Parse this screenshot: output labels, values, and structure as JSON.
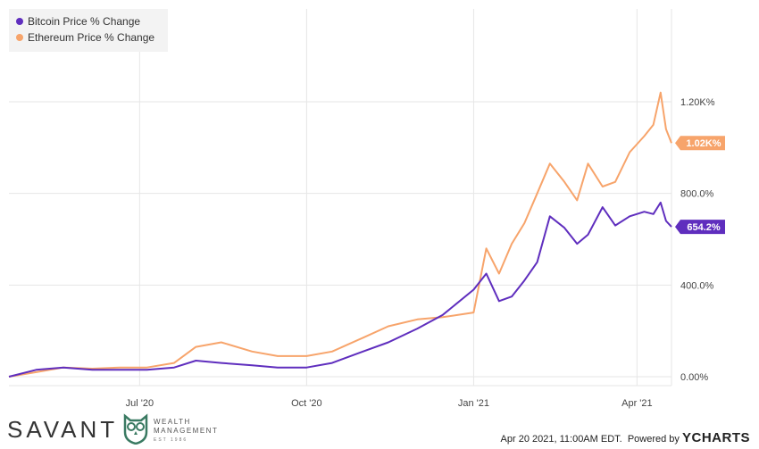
{
  "chart_data": {
    "type": "line",
    "x_ticks": [
      "Jul '20",
      "Oct '20",
      "Jan '21",
      "Apr '21"
    ],
    "y_ticks": [
      "0.00%",
      "400.0%",
      "800.0%",
      "1.20K%"
    ],
    "y_tick_values": [
      0,
      400,
      800,
      1200
    ],
    "ylim": [
      -40,
      1400
    ],
    "x_range": [
      "2020-04-20",
      "2021-04-20"
    ],
    "grid": true,
    "legend_position": "top-left",
    "series": [
      {
        "name": "Bitcoin Price % Change",
        "color": "#5f2ebe",
        "end_label": "654.2%",
        "x": [
          "2020-04-20",
          "2020-05-05",
          "2020-05-20",
          "2020-06-05",
          "2020-06-20",
          "2020-07-05",
          "2020-07-20",
          "2020-08-01",
          "2020-08-15",
          "2020-09-01",
          "2020-09-15",
          "2020-10-01",
          "2020-10-15",
          "2020-11-01",
          "2020-11-15",
          "2020-12-01",
          "2020-12-15",
          "2021-01-01",
          "2021-01-08",
          "2021-01-15",
          "2021-01-22",
          "2021-01-29",
          "2021-02-05",
          "2021-02-12",
          "2021-02-20",
          "2021-02-27",
          "2021-03-05",
          "2021-03-13",
          "2021-03-20",
          "2021-03-28",
          "2021-04-05",
          "2021-04-10",
          "2021-04-14",
          "2021-04-17",
          "2021-04-20"
        ],
        "values": [
          0,
          30,
          40,
          30,
          30,
          30,
          40,
          70,
          60,
          50,
          40,
          40,
          60,
          110,
          150,
          210,
          270,
          380,
          450,
          330,
          350,
          420,
          500,
          700,
          650,
          580,
          620,
          740,
          660,
          700,
          720,
          710,
          760,
          680,
          654
        ]
      },
      {
        "name": "Ethereum Price % Change",
        "color": "#f7a46b",
        "end_label": "1.02K%",
        "x": [
          "2020-04-20",
          "2020-05-05",
          "2020-05-20",
          "2020-06-05",
          "2020-06-20",
          "2020-07-05",
          "2020-07-20",
          "2020-08-01",
          "2020-08-15",
          "2020-09-01",
          "2020-09-15",
          "2020-10-01",
          "2020-10-15",
          "2020-11-01",
          "2020-11-15",
          "2020-12-01",
          "2020-12-15",
          "2021-01-01",
          "2021-01-08",
          "2021-01-15",
          "2021-01-22",
          "2021-01-29",
          "2021-02-05",
          "2021-02-12",
          "2021-02-20",
          "2021-02-27",
          "2021-03-05",
          "2021-03-13",
          "2021-03-20",
          "2021-03-28",
          "2021-04-05",
          "2021-04-10",
          "2021-04-14",
          "2021-04-17",
          "2021-04-20"
        ],
        "values": [
          0,
          20,
          40,
          35,
          40,
          40,
          60,
          130,
          150,
          110,
          90,
          90,
          110,
          170,
          220,
          250,
          260,
          280,
          560,
          450,
          580,
          670,
          800,
          930,
          850,
          770,
          930,
          830,
          850,
          980,
          1050,
          1100,
          1240,
          1080,
          1020
        ]
      }
    ]
  },
  "footer": {
    "brand": "SAVANT",
    "sub_brand_line1": "WEALTH",
    "sub_brand_line2": "MANAGEMENT",
    "sub_brand_est": "EST 1986",
    "timestamp": "Apr 20 2021, 11:00AM EDT.",
    "powered_by": "Powered by",
    "provider": "YCHARTS"
  }
}
